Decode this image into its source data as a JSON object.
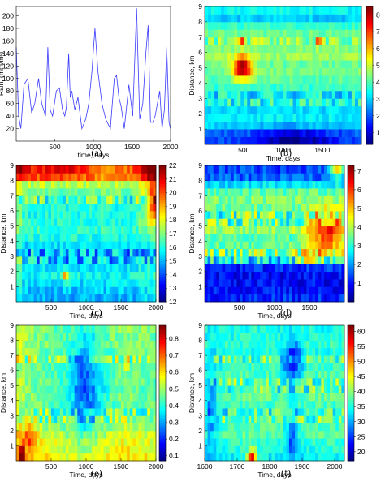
{
  "chart_data": [
    {
      "panel": "(a)",
      "type": "line",
      "xlabel": "time, days",
      "ylabel": "Rain, (mm/m²)",
      "xlim": [
        0,
        2000
      ],
      "ylim": [
        0,
        215
      ],
      "xticks": [
        500,
        1000,
        1500,
        2000
      ],
      "yticks": [
        20,
        40,
        60,
        80,
        100,
        120,
        140,
        160,
        180,
        200
      ],
      "color": "#3a3aff",
      "series": [
        {
          "x": [
            0,
            30,
            60,
            100,
            150,
            200,
            240,
            290,
            330,
            380,
            410,
            440,
            470,
            520,
            560,
            600,
            630,
            650,
            680,
            700,
            720,
            760,
            800,
            850,
            900,
            940,
            980,
            1020,
            1060,
            1110,
            1160,
            1220,
            1270,
            1300,
            1330,
            1360,
            1400,
            1460,
            1510,
            1560,
            1600,
            1640,
            1680,
            1710,
            1740,
            1770,
            1800,
            1830,
            1860,
            1890,
            1920,
            1950,
            1980,
            2000
          ],
          "y": [
            150,
            40,
            20,
            90,
            100,
            45,
            60,
            100,
            60,
            40,
            150,
            50,
            40,
            80,
            85,
            50,
            40,
            55,
            140,
            70,
            80,
            50,
            70,
            20,
            35,
            60,
            110,
            180,
            110,
            60,
            35,
            20,
            100,
            105,
            70,
            55,
            20,
            90,
            40,
            212,
            35,
            60,
            140,
            185,
            30,
            30,
            40,
            60,
            80,
            20,
            50,
            150,
            30,
            20
          ]
        }
      ]
    },
    {
      "panel": "(b)",
      "type": "heatmap",
      "xlabel": "Time, days",
      "ylabel": "Distance, km",
      "xlim": [
        0,
        2000
      ],
      "ylim": [
        0,
        9
      ],
      "xticks": [
        500,
        1000,
        1500
      ],
      "yticks": [
        1,
        2,
        3,
        4,
        5,
        6,
        7,
        8,
        9
      ],
      "color_range": [
        0.3,
        8.5
      ],
      "colorbar_ticks": [
        1,
        2,
        3,
        4,
        5,
        6,
        7,
        8
      ],
      "profile": [
        2.0,
        2.2,
        3.0,
        3.3,
        3.1,
        3.5,
        3.3,
        3.8,
        4.1,
        4.3,
        4.2,
        4.6,
        4.4,
        4.5,
        4.2,
        3.8,
        3.0,
        3.4
      ],
      "drift": [
        0,
        0,
        0,
        0,
        0,
        0,
        0,
        0,
        0
      ],
      "hot": [
        {
          "x": 480,
          "y": 5.0,
          "v": 4.5,
          "sx": 90,
          "sy": 0.5
        },
        {
          "x": 1450,
          "y": 6.7,
          "v": 2.5,
          "sx": 25,
          "sy": 0.2
        },
        {
          "x": 470,
          "y": 6.7,
          "v": 2.0,
          "sx": 25,
          "sy": 0.2
        },
        {
          "x": 1150,
          "y": 0.3,
          "v": -1.6,
          "sx": 350,
          "sy": 0.5
        }
      ],
      "stripe_rows": [
        3,
        6.7
      ],
      "noise": 0.35,
      "seed": 11
    },
    {
      "panel": "(c)",
      "type": "heatmap",
      "xlabel": "Time, days",
      "ylabel": "Distance, km",
      "xlim": [
        0,
        2000
      ],
      "ylim": [
        0,
        9
      ],
      "xticks": [
        500,
        1000,
        1500,
        2000
      ],
      "yticks": [
        1,
        2,
        3,
        4,
        5,
        6,
        7,
        8,
        9
      ],
      "color_range": [
        12,
        22
      ],
      "colorbar_ticks": [
        12,
        13,
        14,
        15,
        16,
        17,
        18,
        19,
        20,
        21,
        22
      ],
      "profile": [
        15.0,
        15.2,
        15.5,
        15.8,
        15.6,
        15.2,
        15.0,
        15.5,
        16.0,
        16.2,
        16.1,
        16.0,
        16.0,
        16.5,
        16.8,
        17.5,
        19.5,
        20.5
      ],
      "drift": [
        17.5,
        16.5,
        15.8,
        15.5,
        15.6,
        15.4,
        15.6,
        16.5,
        17.5
      ],
      "hot": [
        {
          "x": 700,
          "y": 1.8,
          "v": 3.5,
          "sx": 40,
          "sy": 0.3
        },
        {
          "x": 700,
          "y": 8.7,
          "v": 1.5,
          "sx": 300,
          "sy": 0.4
        },
        {
          "x": 1980,
          "y": 6.5,
          "v": 3.0,
          "sx": 60,
          "sy": 0.6
        }
      ],
      "stripe_rows": [
        3,
        6.7
      ],
      "noise": 0.6,
      "seed": 23
    },
    {
      "panel": "(d)",
      "type": "heatmap",
      "xlabel": "Time, days",
      "ylabel": "Distance, km",
      "xlim": [
        0,
        2000
      ],
      "ylim": [
        0,
        9
      ],
      "xticks": [
        500,
        1000,
        1500
      ],
      "yticks": [
        1,
        2,
        3,
        4,
        5,
        6,
        7,
        8,
        9
      ],
      "color_range": [
        0,
        7.3
      ],
      "colorbar_ticks": [
        1,
        2,
        3,
        4,
        5,
        6,
        7
      ],
      "profile": [
        1.2,
        1.0,
        0.9,
        0.9,
        1.1,
        2.8,
        3.6,
        3.4,
        3.3,
        3.8,
        3.5,
        3.4,
        3.5,
        3.6,
        3.3,
        2.6,
        1.6,
        1.4
      ],
      "drift": [
        0,
        0,
        0,
        0,
        0,
        0,
        0,
        0,
        0
      ],
      "hot": [
        {
          "x": 1750,
          "y": 4.6,
          "v": 2.6,
          "sx": 200,
          "sy": 1.1
        },
        {
          "x": 1460,
          "y": 3.0,
          "v": 3.0,
          "sx": 50,
          "sy": 0.3
        },
        {
          "x": 1900,
          "y": 8.8,
          "v": 3.0,
          "sx": 80,
          "sy": 0.4
        }
      ],
      "stripe_rows": [
        3,
        5.5
      ],
      "noise": 0.5,
      "seed": 37
    },
    {
      "panel": "(e)",
      "type": "heatmap",
      "xlabel": "Time, days",
      "ylabel": "Distance, km",
      "xlim": [
        0,
        2000
      ],
      "ylim": [
        0,
        9
      ],
      "xticks": [
        500,
        1000,
        1500,
        2000
      ],
      "yticks": [
        1,
        2,
        3,
        4,
        5,
        6,
        7,
        8,
        9
      ],
      "color_range": [
        0.07,
        0.88
      ],
      "colorbar_ticks": [
        0.1,
        0.2,
        0.3,
        0.4,
        0.5,
        0.6,
        0.7,
        0.8
      ],
      "profile": [
        0.6,
        0.58,
        0.57,
        0.55,
        0.52,
        0.5,
        0.47,
        0.46,
        0.47,
        0.45,
        0.47,
        0.46,
        0.46,
        0.48,
        0.47,
        0.48,
        0.48,
        0.48
      ],
      "drift": [
        0.05,
        0.0,
        -0.02,
        -0.05,
        -0.08,
        -0.04,
        0.0,
        0.0,
        -0.02
      ],
      "hot": [
        {
          "x": 200,
          "y": 1.5,
          "v": 0.18,
          "sx": 60,
          "sy": 0.6
        },
        {
          "x": 1000,
          "y": 5.0,
          "v": -0.15,
          "sx": 150,
          "sy": 1.8
        },
        {
          "x": 1580,
          "y": 6.5,
          "v": 0.25,
          "sx": 20,
          "sy": 0.2
        },
        {
          "x": 80,
          "y": 0.4,
          "v": 0.3,
          "sx": 30,
          "sy": 0.5
        }
      ],
      "stripe_rows": [
        3,
        6.7
      ],
      "noise": 0.05,
      "seed": 51
    },
    {
      "panel": "(f)",
      "type": "heatmap",
      "xlabel": "Time, days",
      "ylabel": "Distance, km",
      "xlim": [
        1600,
        2030
      ],
      "ylim": [
        0,
        9
      ],
      "xticks": [
        1600,
        1700,
        1800,
        1900,
        2000
      ],
      "yticks": [
        1,
        2,
        3,
        4,
        5,
        6,
        7,
        8,
        9
      ],
      "color_range": [
        17,
        62
      ],
      "colorbar_ticks": [
        20,
        25,
        30,
        35,
        40,
        45,
        50,
        55,
        60
      ],
      "profile": [
        34,
        35,
        36,
        38,
        37,
        38,
        36,
        37,
        38,
        37,
        38,
        37,
        36,
        37,
        35,
        36,
        35,
        35
      ],
      "drift": [
        0,
        0,
        0,
        0,
        0,
        0,
        0,
        0,
        0
      ],
      "hot": [
        {
          "x": 1745,
          "y": 0.25,
          "v": 24,
          "sx": 10,
          "sy": 0.35
        },
        {
          "x": 1870,
          "y": 6.5,
          "v": -12,
          "sx": 20,
          "sy": 1.2
        },
        {
          "x": 1870,
          "y": 1.5,
          "v": -10,
          "sx": 15,
          "sy": 1.0
        },
        {
          "x": 1620,
          "y": 3.5,
          "v": -8,
          "sx": 15,
          "sy": 2.5
        }
      ],
      "stripe_rows": [
        3,
        5,
        6.7
      ],
      "noise": 2.5,
      "seed": 77
    }
  ],
  "captions": [
    "(a)",
    "(b)",
    "(c)",
    "(d)",
    "(e)",
    "(f)"
  ]
}
